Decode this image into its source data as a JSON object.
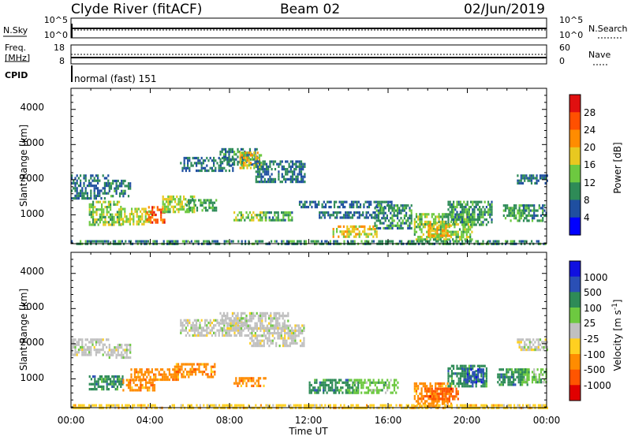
{
  "header": {
    "station": "Clyde River (fitACF)",
    "beam": "Beam 02",
    "date": "02/Jun/2019"
  },
  "status_panels": {
    "nsky_label": "N.Sky",
    "nsky_ticks": [
      "10^5",
      "10^0"
    ],
    "nsearch_label": "N.Search",
    "nsearch_ticks": [
      "10^5",
      "10^0"
    ],
    "freq_label_1": "Freq.",
    "freq_label_2": "[MHz]",
    "freq_ticks": [
      "18",
      "8"
    ],
    "nave_label": "Nave",
    "nave_ticks": [
      "60",
      "0"
    ],
    "cpid_label": "CPID",
    "cpid_value": "normal (fast) 151"
  },
  "colors": {
    "power_scale": [
      "#0000ff",
      "#1f4fa0",
      "#2e8b57",
      "#6dc940",
      "#e8c820",
      "#ff8c00",
      "#ff5000",
      "#e01010"
    ],
    "velocity_scale": [
      "#1010e0",
      "#2a4fb5",
      "#2e8b57",
      "#6dc940",
      "#c0c0c0",
      "#ffd020",
      "#ff8c00",
      "#ff5500",
      "#e00000"
    ]
  },
  "chart_data": [
    {
      "type": "heatmap",
      "name": "power",
      "xlabel": "",
      "ylabel": "Slant Range [km]",
      "x_range_hours": [
        0,
        24
      ],
      "ylim": [
        180,
        4600
      ],
      "y_ticks": [
        "4000",
        "3000",
        "2000",
        "1000"
      ],
      "colorbar_label": "Power [dB]",
      "colorbar_ticks": [
        "28",
        "24",
        "20",
        "16",
        "12",
        "8",
        "4"
      ],
      "colorbar_range": [
        0,
        32
      ],
      "blobs": [
        {
          "t0": 0.0,
          "t1": 1.9,
          "r0": 1500,
          "r1": 2150,
          "v": 8
        },
        {
          "t0": 1.9,
          "t1": 3.0,
          "r0": 1500,
          "r1": 2000,
          "v": 9
        },
        {
          "t0": 0.9,
          "t1": 2.5,
          "r0": 750,
          "r1": 1400,
          "v": 14
        },
        {
          "t0": 2.5,
          "t1": 4.0,
          "r0": 750,
          "r1": 1200,
          "v": 16
        },
        {
          "t0": 3.8,
          "t1": 4.7,
          "r0": 800,
          "r1": 1250,
          "v": 25
        },
        {
          "t0": 4.6,
          "t1": 6.2,
          "r0": 1050,
          "r1": 1550,
          "v": 15
        },
        {
          "t0": 5.8,
          "t1": 7.3,
          "r0": 1100,
          "r1": 1450,
          "v": 12
        },
        {
          "t0": 5.5,
          "t1": 8.2,
          "r0": 2250,
          "r1": 2650,
          "v": 8
        },
        {
          "t0": 7.5,
          "t1": 9.4,
          "r0": 2400,
          "r1": 2900,
          "v": 9
        },
        {
          "t0": 8.5,
          "t1": 9.6,
          "r0": 2300,
          "r1": 2800,
          "v": 18
        },
        {
          "t0": 9.3,
          "t1": 11.8,
          "r0": 1950,
          "r1": 2550,
          "v": 8
        },
        {
          "t0": 8.2,
          "t1": 9.8,
          "r0": 850,
          "r1": 1100,
          "v": 14
        },
        {
          "t0": 9.8,
          "t1": 11.2,
          "r0": 850,
          "r1": 1100,
          "v": 11
        },
        {
          "t0": 11.5,
          "t1": 16.2,
          "r0": 1200,
          "r1": 1400,
          "v": 8
        },
        {
          "t0": 12.5,
          "t1": 15.5,
          "r0": 900,
          "r1": 1100,
          "v": 8
        },
        {
          "t0": 13.2,
          "t1": 15.4,
          "r0": 400,
          "r1": 700,
          "v": 18
        },
        {
          "t0": 15.3,
          "t1": 17.2,
          "r0": 650,
          "r1": 1300,
          "v": 10
        },
        {
          "t0": 17.3,
          "t1": 20.2,
          "r0": 300,
          "r1": 1050,
          "v": 14
        },
        {
          "t0": 18.0,
          "t1": 19.2,
          "r0": 400,
          "r1": 800,
          "v": 19
        },
        {
          "t0": 19.0,
          "t1": 21.2,
          "r0": 700,
          "r1": 1400,
          "v": 11
        },
        {
          "t0": 21.8,
          "t1": 23.0,
          "r0": 850,
          "r1": 1300,
          "v": 12
        },
        {
          "t0": 22.8,
          "t1": 24.0,
          "r0": 800,
          "r1": 1300,
          "v": 9
        },
        {
          "t0": 22.5,
          "t1": 24.0,
          "r0": 1900,
          "r1": 2150,
          "v": 7
        },
        {
          "t0": 0.0,
          "t1": 24.0,
          "r0": 180,
          "r1": 280,
          "v": 10
        }
      ]
    },
    {
      "type": "heatmap",
      "name": "velocity",
      "xlabel": "Time UT",
      "ylabel": "Slant Range [km]",
      "x_ticks": [
        "00:00",
        "04:00",
        "08:00",
        "12:00",
        "16:00",
        "20:00",
        "00:00"
      ],
      "x_range_hours": [
        0,
        24
      ],
      "ylim": [
        180,
        4600
      ],
      "y_ticks": [
        "4000",
        "3000",
        "2000",
        "1000"
      ],
      "colorbar_label": "Velocity [m s",
      "colorbar_label_sup": "-1",
      "colorbar_ticks": [
        "1000",
        "500",
        "100",
        "25",
        "-25",
        "-100",
        "-500",
        "-1000"
      ],
      "blobs": [
        {
          "t0": 0.0,
          "t1": 1.9,
          "r0": 1700,
          "r1": 2150,
          "v": 4
        },
        {
          "t0": 1.9,
          "t1": 3.0,
          "r0": 1600,
          "r1": 2000,
          "v": 4
        },
        {
          "t0": 0.9,
          "t1": 2.6,
          "r0": 700,
          "r1": 1100,
          "v": 2
        },
        {
          "t0": 2.6,
          "t1": 4.2,
          "r0": 650,
          "r1": 1000,
          "v": 6
        },
        {
          "t0": 3.0,
          "t1": 5.5,
          "r0": 950,
          "r1": 1300,
          "v": 6
        },
        {
          "t0": 5.2,
          "t1": 7.3,
          "r0": 1050,
          "r1": 1450,
          "v": 6
        },
        {
          "t0": 5.5,
          "t1": 9.0,
          "r0": 2250,
          "r1": 2700,
          "v": 4
        },
        {
          "t0": 7.5,
          "t1": 11.0,
          "r0": 2400,
          "r1": 2900,
          "v": 4
        },
        {
          "t0": 9.0,
          "t1": 11.8,
          "r0": 1950,
          "r1": 2550,
          "v": 4
        },
        {
          "t0": 8.2,
          "t1": 9.8,
          "r0": 800,
          "r1": 1050,
          "v": 6
        },
        {
          "t0": 12.0,
          "t1": 14.5,
          "r0": 600,
          "r1": 1000,
          "v": 2
        },
        {
          "t0": 14.0,
          "t1": 16.5,
          "r0": 600,
          "r1": 1000,
          "v": 3
        },
        {
          "t0": 17.3,
          "t1": 19.2,
          "r0": 250,
          "r1": 900,
          "v": 6
        },
        {
          "t0": 18.0,
          "t1": 19.5,
          "r0": 400,
          "r1": 750,
          "v": 7
        },
        {
          "t0": 19.0,
          "t1": 21.0,
          "r0": 800,
          "r1": 1400,
          "v": 2
        },
        {
          "t0": 19.8,
          "t1": 20.8,
          "r0": 900,
          "r1": 1300,
          "v": 1
        },
        {
          "t0": 21.5,
          "t1": 23.0,
          "r0": 800,
          "r1": 1300,
          "v": 2
        },
        {
          "t0": 22.5,
          "t1": 24.0,
          "r0": 1850,
          "r1": 2150,
          "v": 4
        },
        {
          "t0": 22.8,
          "t1": 24.0,
          "r0": 900,
          "r1": 1300,
          "v": 3
        },
        {
          "t0": 0.0,
          "t1": 24.0,
          "r0": 180,
          "r1": 280,
          "v": 5
        }
      ]
    }
  ]
}
